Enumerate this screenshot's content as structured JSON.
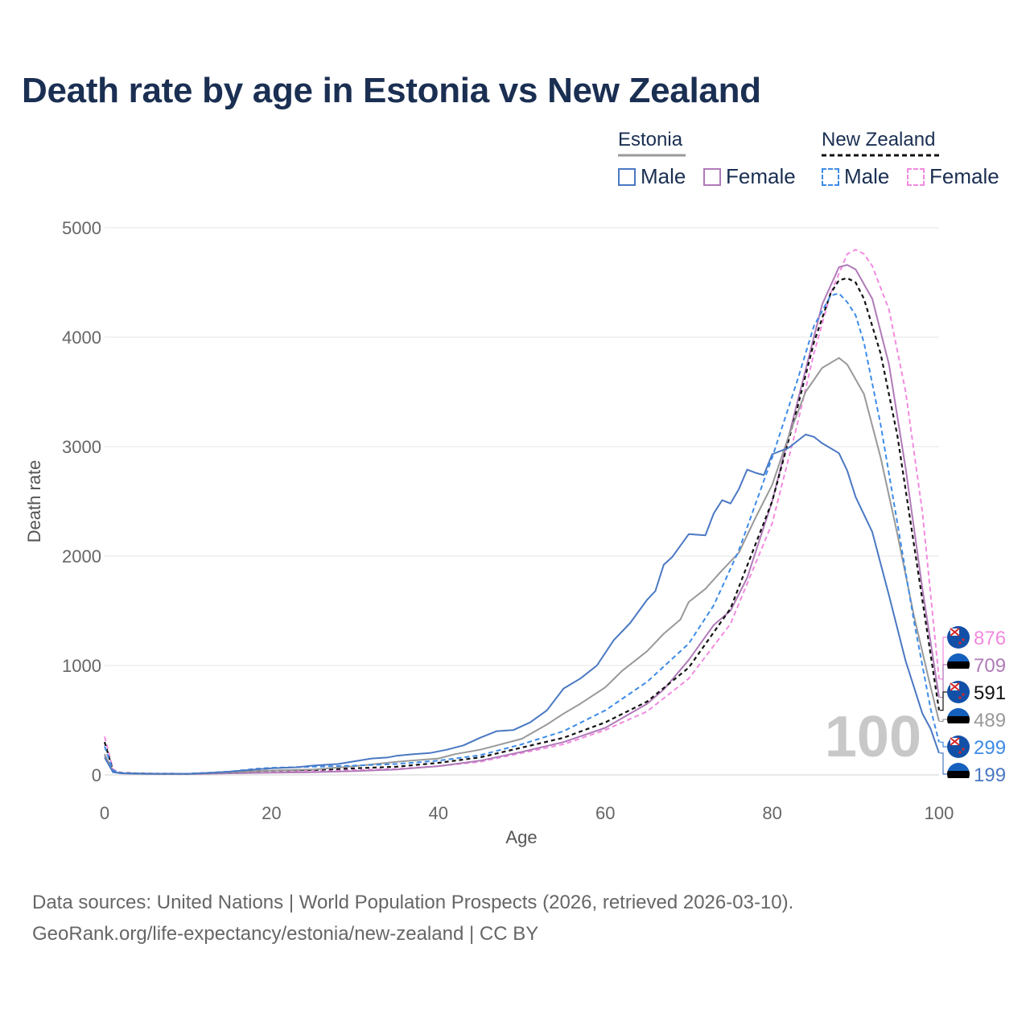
{
  "title": "Death rate by age in Estonia vs New Zealand",
  "legend": {
    "groups": [
      {
        "name": "Estonia",
        "color": "#999999",
        "style": "solid",
        "items": [
          {
            "label": "Male",
            "color": "#4a78c2",
            "style": "solid"
          },
          {
            "label": "Female",
            "color": "#b07ab8",
            "style": "solid"
          }
        ]
      },
      {
        "name": "New Zealand",
        "color": "#111111",
        "style": "dashed",
        "items": [
          {
            "label": "Male",
            "color": "#3d8be8",
            "style": "dashed"
          },
          {
            "label": "Female",
            "color": "#f28ae0",
            "style": "dashed"
          }
        ]
      }
    ]
  },
  "footer": {
    "line1": "Data sources: United Nations | World Population Prospects (2026, retrieved 2026-03-10).",
    "line2": "GeoRank.org/life-expectancy/estonia/new-zealand | CC BY"
  },
  "chart_data": {
    "type": "line",
    "title": "Death rate by age in Estonia vs New Zealand",
    "xlabel": "Age",
    "ylabel": "Death rate",
    "xlim": [
      0,
      100
    ],
    "ylim": [
      0,
      5000
    ],
    "xticks": [
      0,
      20,
      40,
      60,
      80,
      100
    ],
    "yticks": [
      0,
      1000,
      2000,
      3000,
      4000,
      5000
    ],
    "grid": true,
    "watermark": "100",
    "series": [
      {
        "name": "New Zealand Female",
        "country": "New Zealand",
        "color": "#f28ae0",
        "dash": "6,4",
        "width": 2,
        "end_value": "876",
        "points": [
          [
            0,
            350
          ],
          [
            1,
            50
          ],
          [
            2,
            20
          ],
          [
            5,
            12
          ],
          [
            10,
            10
          ],
          [
            15,
            20
          ],
          [
            20,
            30
          ],
          [
            25,
            35
          ],
          [
            30,
            45
          ],
          [
            35,
            55
          ],
          [
            40,
            80
          ],
          [
            45,
            120
          ],
          [
            50,
            200
          ],
          [
            55,
            280
          ],
          [
            60,
            410
          ],
          [
            65,
            580
          ],
          [
            70,
            880
          ],
          [
            75,
            1380
          ],
          [
            80,
            2300
          ],
          [
            83,
            3200
          ],
          [
            85,
            3850
          ],
          [
            87,
            4400
          ],
          [
            89,
            4760
          ],
          [
            90,
            4800
          ],
          [
            91,
            4760
          ],
          [
            92,
            4650
          ],
          [
            94,
            4250
          ],
          [
            96,
            3500
          ],
          [
            98,
            2400
          ],
          [
            100,
            876
          ]
        ]
      },
      {
        "name": "Estonia Female",
        "country": "Estonia",
        "color": "#b07ab8",
        "dash": "",
        "width": 2,
        "end_value": "709",
        "points": [
          [
            0,
            180
          ],
          [
            1,
            30
          ],
          [
            2,
            15
          ],
          [
            5,
            10
          ],
          [
            10,
            8
          ],
          [
            15,
            15
          ],
          [
            20,
            20
          ],
          [
            25,
            25
          ],
          [
            30,
            35
          ],
          [
            35,
            50
          ],
          [
            40,
            80
          ],
          [
            45,
            130
          ],
          [
            50,
            210
          ],
          [
            55,
            300
          ],
          [
            60,
            430
          ],
          [
            65,
            650
          ],
          [
            67,
            780
          ],
          [
            70,
            1050
          ],
          [
            73,
            1370
          ],
          [
            75,
            1500
          ],
          [
            77,
            1800
          ],
          [
            80,
            2500
          ],
          [
            82,
            3100
          ],
          [
            84,
            3700
          ],
          [
            86,
            4300
          ],
          [
            88,
            4640
          ],
          [
            89,
            4660
          ],
          [
            90,
            4620
          ],
          [
            92,
            4350
          ],
          [
            94,
            3750
          ],
          [
            96,
            2800
          ],
          [
            98,
            1700
          ],
          [
            100,
            709
          ]
        ]
      },
      {
        "name": "New Zealand Total",
        "country": "New Zealand",
        "color": "#111111",
        "dash": "5,4",
        "width": 2.2,
        "end_value": "591",
        "points": [
          [
            0,
            300
          ],
          [
            1,
            40
          ],
          [
            2,
            18
          ],
          [
            5,
            12
          ],
          [
            10,
            10
          ],
          [
            15,
            25
          ],
          [
            20,
            40
          ],
          [
            25,
            45
          ],
          [
            30,
            60
          ],
          [
            35,
            75
          ],
          [
            40,
            110
          ],
          [
            45,
            160
          ],
          [
            50,
            250
          ],
          [
            55,
            340
          ],
          [
            60,
            480
          ],
          [
            65,
            670
          ],
          [
            70,
            980
          ],
          [
            75,
            1520
          ],
          [
            80,
            2500
          ],
          [
            83,
            3350
          ],
          [
            85,
            3950
          ],
          [
            87,
            4400
          ],
          [
            88,
            4520
          ],
          [
            89,
            4540
          ],
          [
            90,
            4500
          ],
          [
            91,
            4350
          ],
          [
            93,
            3850
          ],
          [
            95,
            3100
          ],
          [
            97,
            2100
          ],
          [
            100,
            591
          ]
        ]
      },
      {
        "name": "Estonia Total",
        "country": "Estonia",
        "color": "#999999",
        "dash": "",
        "width": 2,
        "end_value": "489",
        "points": [
          [
            0,
            190
          ],
          [
            1,
            30
          ],
          [
            2,
            15
          ],
          [
            5,
            10
          ],
          [
            10,
            10
          ],
          [
            15,
            25
          ],
          [
            20,
            40
          ],
          [
            25,
            50
          ],
          [
            30,
            80
          ],
          [
            35,
            120
          ],
          [
            40,
            150
          ],
          [
            42,
            190
          ],
          [
            45,
            230
          ],
          [
            47,
            270
          ],
          [
            50,
            330
          ],
          [
            53,
            460
          ],
          [
            55,
            560
          ],
          [
            57,
            650
          ],
          [
            60,
            800
          ],
          [
            62,
            950
          ],
          [
            65,
            1130
          ],
          [
            67,
            1290
          ],
          [
            69,
            1420
          ],
          [
            70,
            1580
          ],
          [
            72,
            1700
          ],
          [
            74,
            1870
          ],
          [
            76,
            2030
          ],
          [
            78,
            2350
          ],
          [
            80,
            2650
          ],
          [
            82,
            3100
          ],
          [
            84,
            3500
          ],
          [
            86,
            3720
          ],
          [
            88,
            3810
          ],
          [
            89,
            3750
          ],
          [
            91,
            3480
          ],
          [
            93,
            2900
          ],
          [
            95,
            2200
          ],
          [
            97,
            1450
          ],
          [
            99,
            800
          ],
          [
            100,
            489
          ]
        ]
      },
      {
        "name": "New Zealand Male",
        "country": "New Zealand",
        "color": "#3d8be8",
        "dash": "6,4",
        "width": 2,
        "end_value": "299",
        "points": [
          [
            0,
            260
          ],
          [
            1,
            40
          ],
          [
            2,
            18
          ],
          [
            5,
            12
          ],
          [
            10,
            10
          ],
          [
            15,
            30
          ],
          [
            18,
            55
          ],
          [
            20,
            65
          ],
          [
            25,
            75
          ],
          [
            30,
            85
          ],
          [
            35,
            100
          ],
          [
            40,
            130
          ],
          [
            45,
            180
          ],
          [
            50,
            280
          ],
          [
            55,
            400
          ],
          [
            60,
            590
          ],
          [
            65,
            850
          ],
          [
            70,
            1200
          ],
          [
            73,
            1550
          ],
          [
            76,
            2050
          ],
          [
            80,
            2900
          ],
          [
            83,
            3600
          ],
          [
            85,
            4100
          ],
          [
            87,
            4380
          ],
          [
            88,
            4400
          ],
          [
            89,
            4320
          ],
          [
            90,
            4200
          ],
          [
            91,
            3950
          ],
          [
            93,
            3200
          ],
          [
            95,
            2300
          ],
          [
            97,
            1400
          ],
          [
            99,
            600
          ],
          [
            100,
            299
          ]
        ]
      },
      {
        "name": "Estonia Male",
        "country": "Estonia",
        "color": "#4a78c2",
        "dash": "",
        "width": 2,
        "end_value": "199",
        "points": [
          [
            0,
            160
          ],
          [
            1,
            25
          ],
          [
            2,
            15
          ],
          [
            5,
            10
          ],
          [
            10,
            10
          ],
          [
            13,
            20
          ],
          [
            15,
            30
          ],
          [
            18,
            50
          ],
          [
            20,
            60
          ],
          [
            23,
            70
          ],
          [
            25,
            85
          ],
          [
            28,
            100
          ],
          [
            30,
            125
          ],
          [
            32,
            150
          ],
          [
            34,
            160
          ],
          [
            35,
            175
          ],
          [
            37,
            190
          ],
          [
            39,
            200
          ],
          [
            41,
            230
          ],
          [
            43,
            270
          ],
          [
            45,
            340
          ],
          [
            47,
            400
          ],
          [
            49,
            410
          ],
          [
            51,
            480
          ],
          [
            53,
            590
          ],
          [
            55,
            790
          ],
          [
            57,
            880
          ],
          [
            59,
            1000
          ],
          [
            61,
            1230
          ],
          [
            63,
            1390
          ],
          [
            65,
            1600
          ],
          [
            66,
            1680
          ],
          [
            67,
            1920
          ],
          [
            68,
            1990
          ],
          [
            70,
            2200
          ],
          [
            72,
            2190
          ],
          [
            73,
            2390
          ],
          [
            74,
            2510
          ],
          [
            75,
            2480
          ],
          [
            76,
            2610
          ],
          [
            77,
            2790
          ],
          [
            78,
            2760
          ],
          [
            79,
            2740
          ],
          [
            80,
            2930
          ],
          [
            82,
            2990
          ],
          [
            84,
            3110
          ],
          [
            85,
            3090
          ],
          [
            86,
            3030
          ],
          [
            88,
            2940
          ],
          [
            89,
            2780
          ],
          [
            90,
            2540
          ],
          [
            92,
            2220
          ],
          [
            94,
            1640
          ],
          [
            96,
            1040
          ],
          [
            98,
            560
          ],
          [
            99,
            420
          ],
          [
            100,
            199
          ]
        ]
      }
    ]
  }
}
